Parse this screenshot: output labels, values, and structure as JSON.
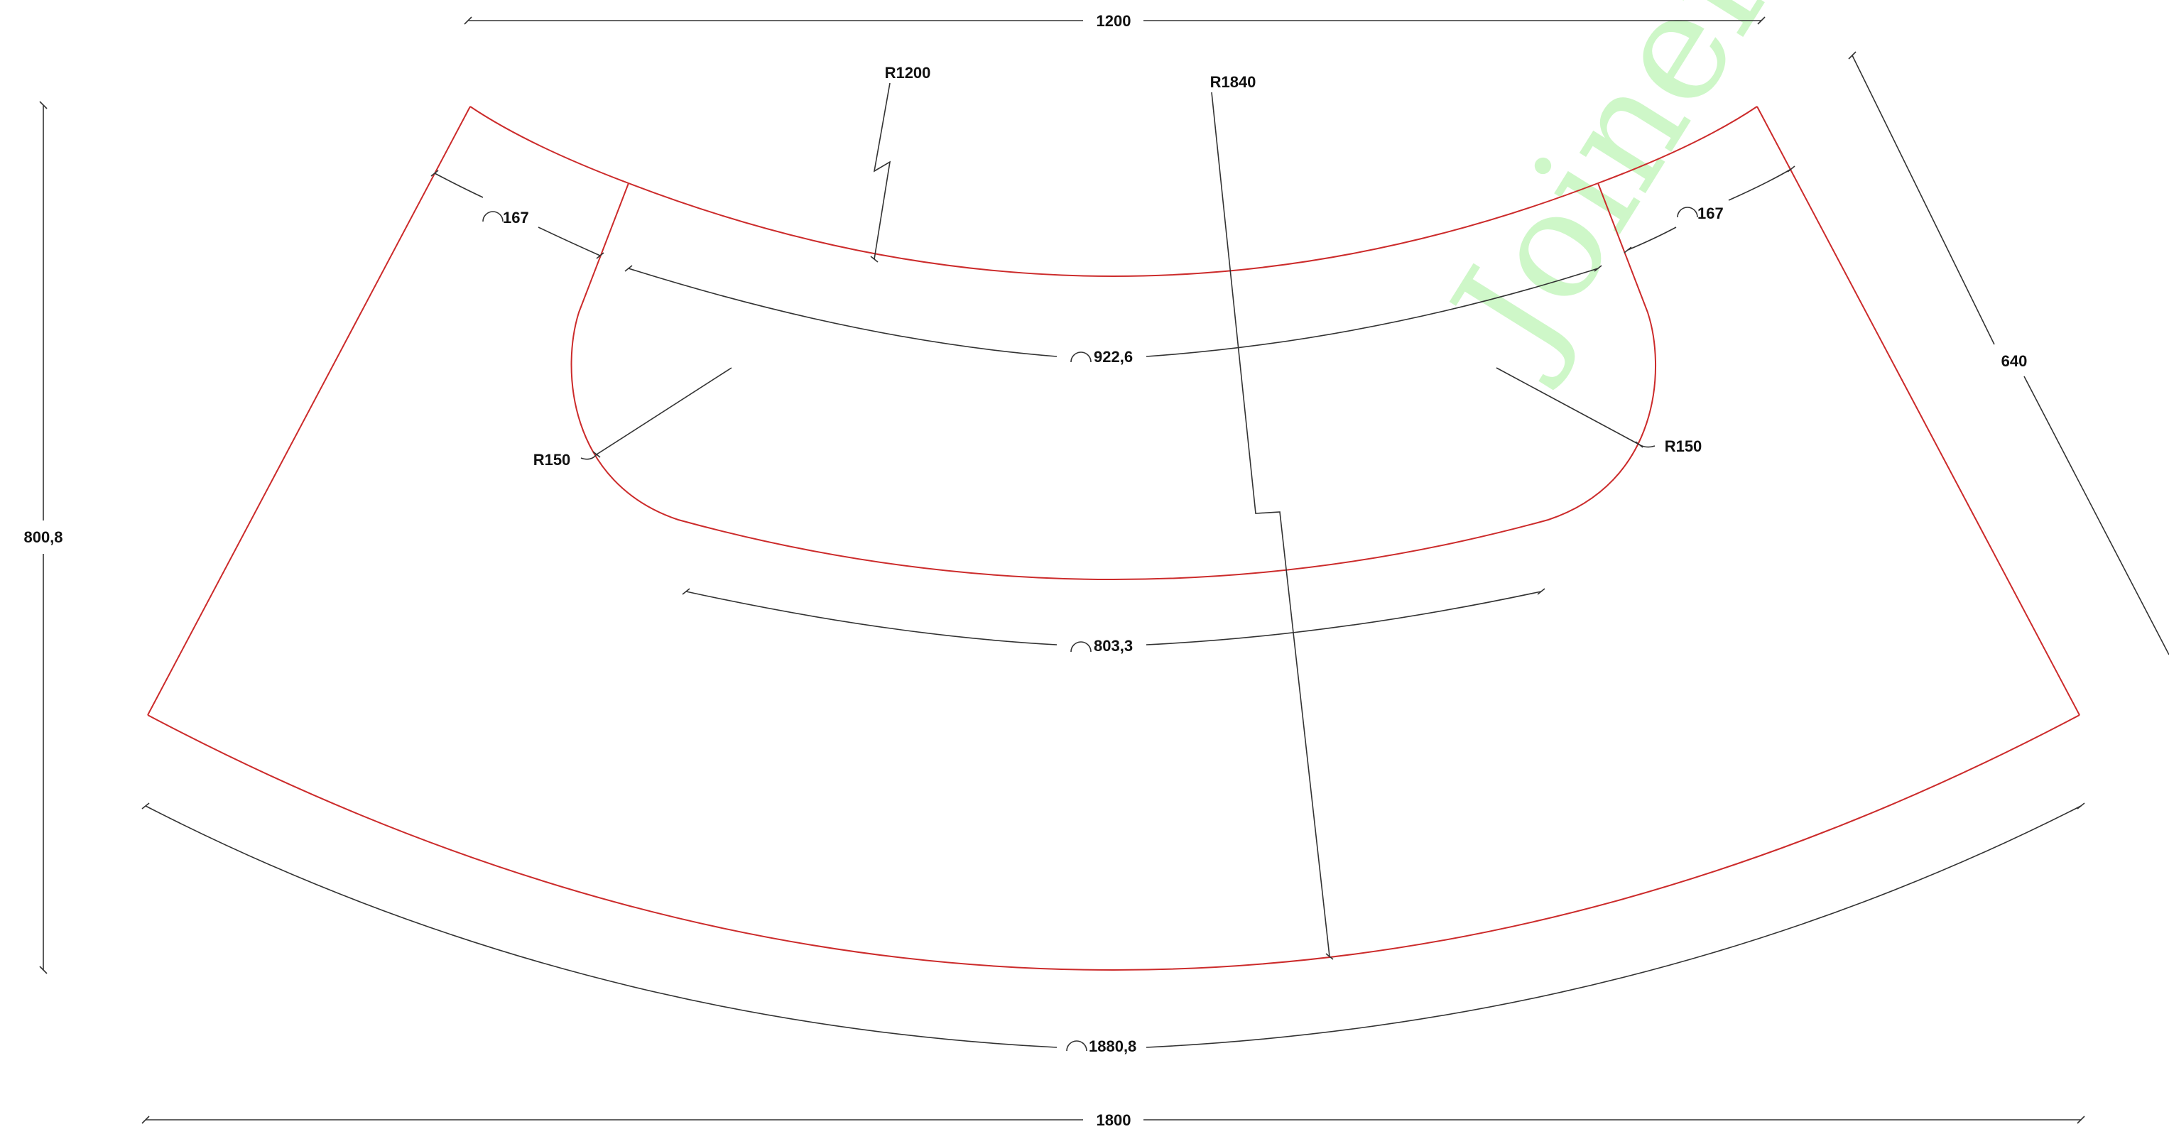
{
  "watermark": "Joinery",
  "dimensions": {
    "top_width": "1200",
    "bottom_width": "1800",
    "height": "800,8",
    "side": "640",
    "inner_radius": "R1200",
    "outer_radius": "R1840",
    "corner_radius_left": "R150",
    "corner_radius_right": "R150",
    "arc_left_flange": "167",
    "arc_right_flange": "167",
    "arc_cutout_top": "922,6",
    "arc_cutout_bottom": "803,3",
    "arc_outer": "1880,8"
  },
  "colors": {
    "outline": "#cc2b2b",
    "dimension": "#333333",
    "watermark": "#c9f7c3"
  }
}
